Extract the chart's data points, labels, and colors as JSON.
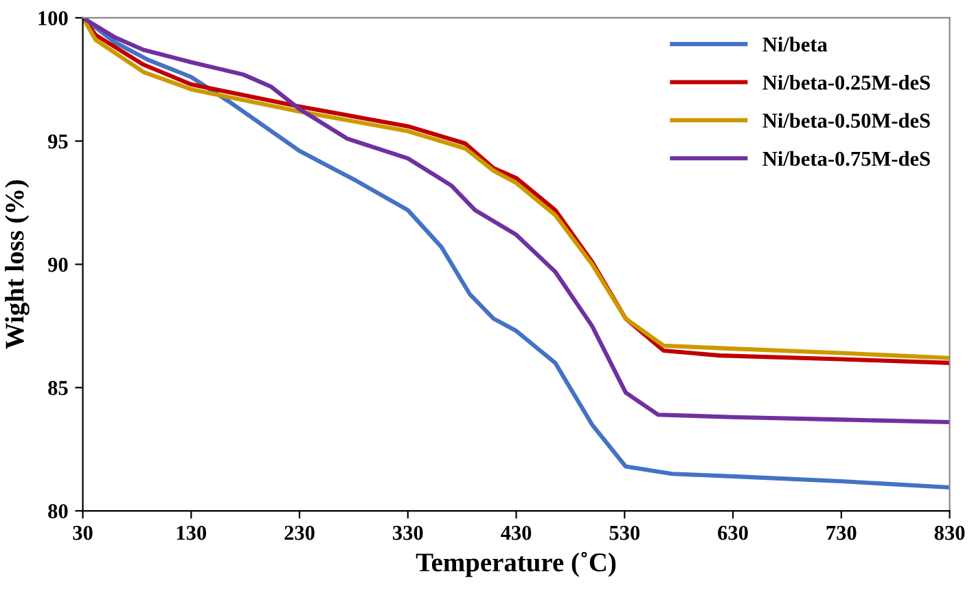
{
  "chart_data": {
    "type": "line",
    "xlabel": "Temperature (˚C)",
    "ylabel": "Wight loss (%)",
    "xlim": [
      30,
      830
    ],
    "ylim": [
      80,
      100
    ],
    "xticks": [
      30,
      130,
      230,
      330,
      430,
      530,
      630,
      730,
      830
    ],
    "yticks": [
      80,
      85,
      90,
      95,
      100
    ],
    "grid": false,
    "legend": "top right",
    "marker": "none",
    "line_style": "solid",
    "series": [
      {
        "name": "Ni/beta",
        "color": "#4472c4",
        "x": [
          30,
          60,
          90,
          130,
          165,
          230,
          282,
          330,
          361,
          387,
          409,
          430,
          466,
          500,
          531,
          574,
          630,
          730,
          830
        ],
        "values": [
          100,
          99.0,
          98.3,
          97.6,
          96.6,
          94.6,
          93.4,
          92.2,
          90.7,
          88.8,
          87.8,
          87.3,
          86.0,
          83.5,
          81.8,
          81.5,
          81.4,
          81.2,
          80.95
        ]
      },
      {
        "name": "Ni/beta-0.25M-deS",
        "color": "#c00000",
        "x": [
          30,
          42,
          86,
          130,
          230,
          330,
          383,
          409,
          430,
          466,
          500,
          531,
          566,
          618,
          730,
          830
        ],
        "values": [
          100,
          99.3,
          98.1,
          97.3,
          96.4,
          95.6,
          94.9,
          93.9,
          93.5,
          92.2,
          90.1,
          87.8,
          86.5,
          86.3,
          86.15,
          86.0
        ]
      },
      {
        "name": "Ni/beta-0.50M-deS",
        "color": "#cc9900",
        "x": [
          30,
          42,
          86,
          130,
          230,
          330,
          383,
          409,
          430,
          466,
          500,
          531,
          566,
          618,
          730,
          830
        ],
        "values": [
          100,
          99.1,
          97.8,
          97.1,
          96.2,
          95.4,
          94.7,
          93.8,
          93.3,
          92.0,
          90.0,
          87.8,
          86.7,
          86.6,
          86.4,
          86.2
        ]
      },
      {
        "name": "Ni/beta-0.75M-deS",
        "color": "#7030a0",
        "x": [
          30,
          60,
          86,
          130,
          178,
          204,
          230,
          274,
          330,
          370,
          392,
          430,
          466,
          500,
          531,
          561,
          630,
          730,
          830
        ],
        "values": [
          100,
          99.2,
          98.7,
          98.2,
          97.7,
          97.2,
          96.3,
          95.1,
          94.3,
          93.2,
          92.2,
          91.2,
          89.7,
          87.5,
          84.8,
          83.9,
          83.8,
          83.7,
          83.6
        ]
      }
    ]
  }
}
